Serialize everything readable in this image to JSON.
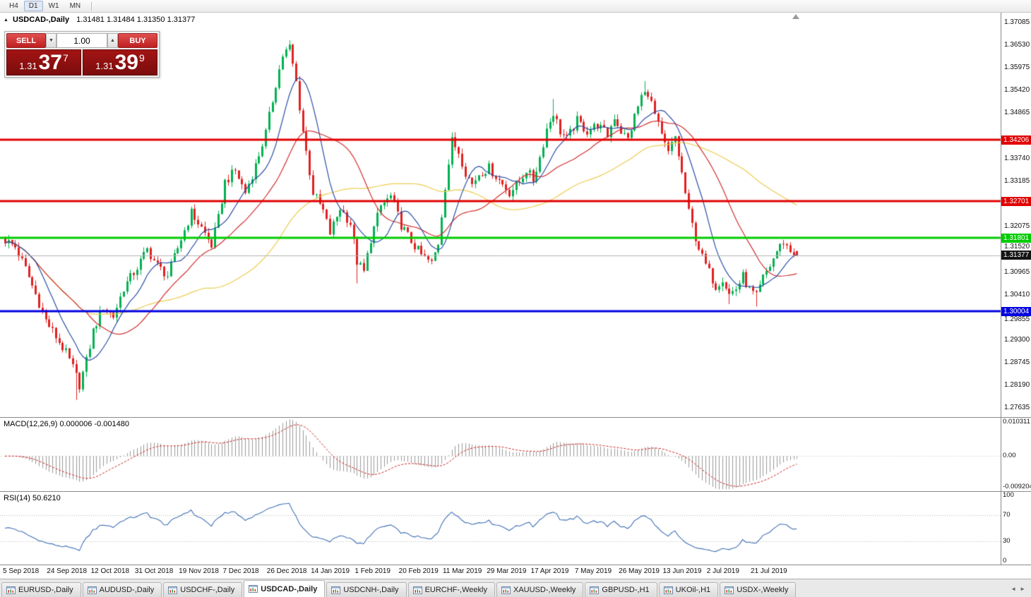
{
  "toolbar": {
    "timeframes": [
      "H4",
      "D1",
      "W1",
      "MN"
    ],
    "active": "D1"
  },
  "icons": {
    "panel_toggle": "▲",
    "volume_down": "▼",
    "volume_up": "▲",
    "tab_scroll_left": "◄",
    "tab_scroll_right": "►"
  },
  "chart": {
    "symbol": "USDCAD-,Daily",
    "ohlc_text": "1.31481 1.31484 1.31350 1.31377",
    "open": "1.31481",
    "high": "1.31484",
    "low": "1.31350",
    "close": "1.31377"
  },
  "trade_panel": {
    "sell_label": "SELL",
    "buy_label": "BUY",
    "volume": "1.00",
    "bid": {
      "prefix": "1.31",
      "pips": "37",
      "pipette": "7"
    },
    "ask": {
      "prefix": "1.31",
      "pips": "39",
      "pipette": "9"
    }
  },
  "price_axis": {
    "ticks": [
      "1.37085",
      "1.36530",
      "1.35975",
      "1.35420",
      "1.34865",
      "1.33740",
      "1.33185",
      "1.32075",
      "1.31520",
      "1.30965",
      "1.30410",
      "1.29855",
      "1.29300",
      "1.28745",
      "1.28190",
      "1.27635"
    ],
    "current": {
      "label": "1.31377",
      "value": 1.31377,
      "bg": "#141414",
      "fg": "#ffffff"
    }
  },
  "levels": [
    {
      "label": "1.34206",
      "value": 1.34206,
      "color": "#e00000",
      "width": 3
    },
    {
      "label": "1.32701",
      "value": 1.32701,
      "color": "#e00000",
      "width": 3
    },
    {
      "label": "1.31801",
      "value": 1.31801,
      "color": "#00cc00",
      "width": 3
    },
    {
      "label": "1.30004",
      "value": 1.30004,
      "color": "#0000e0",
      "width": 3
    }
  ],
  "macd_panel": {
    "label": "MACD(12,26,9) 0.000006 -0.001480",
    "axis": [
      {
        "label": "0.010311",
        "value": 0.010311
      },
      {
        "label": "0.00",
        "value": 0
      },
      {
        "label": "-0.009204",
        "value": -0.009204
      }
    ]
  },
  "rsi_panel": {
    "label": "RSI(14) 50.6210",
    "axis": [
      {
        "label": "100",
        "value": 100
      },
      {
        "label": "70",
        "value": 70
      },
      {
        "label": "30",
        "value": 30
      },
      {
        "label": "0",
        "value": 0
      }
    ],
    "guide_levels": [
      70,
      30
    ]
  },
  "date_axis": [
    "5 Sep 2018",
    "24 Sep 2018",
    "12 Oct 2018",
    "31 Oct 2018",
    "19 Nov 2018",
    "7 Dec 2018",
    "26 Dec 2018",
    "14 Jan 2019",
    "1 Feb 2019",
    "20 Feb 2019",
    "11 Mar 2019",
    "29 Mar 2019",
    "17 Apr 2019",
    "7 May 2019",
    "26 May 2019",
    "13 Jun 2019",
    "2 Jul 2019",
    "21 Jul 2019"
  ],
  "tabs": {
    "items": [
      {
        "label": "EURUSD-,Daily",
        "active": false
      },
      {
        "label": "AUDUSD-,Daily",
        "active": false
      },
      {
        "label": "USDCHF-,Daily",
        "active": false
      },
      {
        "label": "USDCAD-,Daily",
        "active": true
      },
      {
        "label": "USDCNH-,Daily",
        "active": false
      },
      {
        "label": "EURCHF-,Weekly",
        "active": false
      },
      {
        "label": "XAUUSD-,Weekly",
        "active": false
      },
      {
        "label": "GBPUSD-,H1",
        "active": false
      },
      {
        "label": "UKOil-,H1",
        "active": false
      },
      {
        "label": "USDX-,Weekly",
        "active": false
      }
    ]
  },
  "chart_data": {
    "type": "candlestick",
    "symbol": "USDCAD",
    "timeframe": "Daily",
    "y_range": {
      "top": 1.37085,
      "bottom": 1.27635
    },
    "candle_count": 235,
    "candles_per_label": 13,
    "up_color": "#00b050",
    "down_color": "#e02020",
    "price_anchors": [
      [
        0,
        1.3175
      ],
      [
        3,
        1.3158
      ],
      [
        6,
        1.3105
      ],
      [
        9,
        1.3042
      ],
      [
        12,
        1.2978
      ],
      [
        15,
        1.2938
      ],
      [
        18,
        1.2898
      ],
      [
        20,
        1.2862
      ],
      [
        22,
        1.282
      ],
      [
        24,
        1.2878
      ],
      [
        26,
        1.2952
      ],
      [
        29,
        1.3012
      ],
      [
        32,
        1.2988
      ],
      [
        35,
        1.3058
      ],
      [
        39,
        1.3108
      ],
      [
        42,
        1.3152
      ],
      [
        45,
        1.3112
      ],
      [
        48,
        1.3088
      ],
      [
        52,
        1.3178
      ],
      [
        55,
        1.3242
      ],
      [
        58,
        1.3205
      ],
      [
        61,
        1.3162
      ],
      [
        63,
        1.3228
      ],
      [
        65,
        1.3318
      ],
      [
        68,
        1.3345
      ],
      [
        71,
        1.3292
      ],
      [
        74,
        1.3358
      ],
      [
        77,
        1.3438
      ],
      [
        80,
        1.3558
      ],
      [
        82,
        1.3628
      ],
      [
        84,
        1.3648
      ],
      [
        86,
        1.3562
      ],
      [
        88,
        1.3442
      ],
      [
        91,
        1.3292
      ],
      [
        94,
        1.3246
      ],
      [
        96,
        1.3192
      ],
      [
        99,
        1.3254
      ],
      [
        102,
        1.3216
      ],
      [
        104,
        1.3122
      ],
      [
        106,
        1.3096
      ],
      [
        108,
        1.3178
      ],
      [
        111,
        1.3258
      ],
      [
        114,
        1.3282
      ],
      [
        117,
        1.3212
      ],
      [
        120,
        1.3172
      ],
      [
        123,
        1.3138
      ],
      [
        126,
        1.3118
      ],
      [
        128,
        1.3168
      ],
      [
        130,
        1.3308
      ],
      [
        132,
        1.3418
      ],
      [
        134,
        1.3392
      ],
      [
        136,
        1.3342
      ],
      [
        138,
        1.3312
      ],
      [
        140,
        1.3338
      ],
      [
        143,
        1.3352
      ],
      [
        146,
        1.3322
      ],
      [
        149,
        1.3292
      ],
      [
        152,
        1.3318
      ],
      [
        154,
        1.3348
      ],
      [
        156,
        1.3322
      ],
      [
        158,
        1.3378
      ],
      [
        160,
        1.3448
      ],
      [
        162,
        1.3488
      ],
      [
        164,
        1.3442
      ],
      [
        166,
        1.3422
      ],
      [
        169,
        1.3468
      ],
      [
        172,
        1.3442
      ],
      [
        175,
        1.3458
      ],
      [
        178,
        1.3432
      ],
      [
        180,
        1.3478
      ],
      [
        182,
        1.3442
      ],
      [
        184,
        1.3422
      ],
      [
        186,
        1.3478
      ],
      [
        188,
        1.3528
      ],
      [
        190,
        1.3538
      ],
      [
        192,
        1.3482
      ],
      [
        194,
        1.3428
      ],
      [
        196,
        1.3388
      ],
      [
        198,
        1.3428
      ],
      [
        200,
        1.3338
      ],
      [
        202,
        1.3242
      ],
      [
        204,
        1.3182
      ],
      [
        206,
        1.3132
      ],
      [
        208,
        1.3096
      ],
      [
        210,
        1.3062
      ],
      [
        212,
        1.3082
      ],
      [
        214,
        1.3042
      ],
      [
        216,
        1.3056
      ],
      [
        218,
        1.3086
      ],
      [
        220,
        1.3052
      ],
      [
        222,
        1.3036
      ],
      [
        224,
        1.3082
      ],
      [
        226,
        1.3112
      ],
      [
        228,
        1.3148
      ],
      [
        230,
        1.3172
      ],
      [
        232,
        1.3148
      ],
      [
        234,
        1.31377
      ]
    ],
    "wick_extremes": [
      {
        "i": 21,
        "low": 1.2783
      },
      {
        "i": 84,
        "high": 1.3665
      },
      {
        "i": 104,
        "low": 1.3069
      },
      {
        "i": 162,
        "high": 1.3521
      },
      {
        "i": 189,
        "high": 1.3565
      },
      {
        "i": 214,
        "low": 1.3018
      },
      {
        "i": 222,
        "low": 1.3012
      }
    ],
    "last_ohlc": [
      1.31481,
      1.31484,
      1.3135,
      1.31377
    ],
    "moving_averages": [
      {
        "period": 60,
        "color": "#eccc4e"
      },
      {
        "period": 25,
        "color": "#d22d2d"
      },
      {
        "period": 10,
        "color": "#2b4ea6"
      }
    ],
    "macd": {
      "fast": 12,
      "slow": 26,
      "signal": 9,
      "histogram_color": "#999999",
      "signal_color": "#cc2222",
      "scale_max": 0.0115,
      "scale_min": -0.0103
    },
    "rsi": {
      "period": 14,
      "color": "#3f6fb5"
    }
  }
}
